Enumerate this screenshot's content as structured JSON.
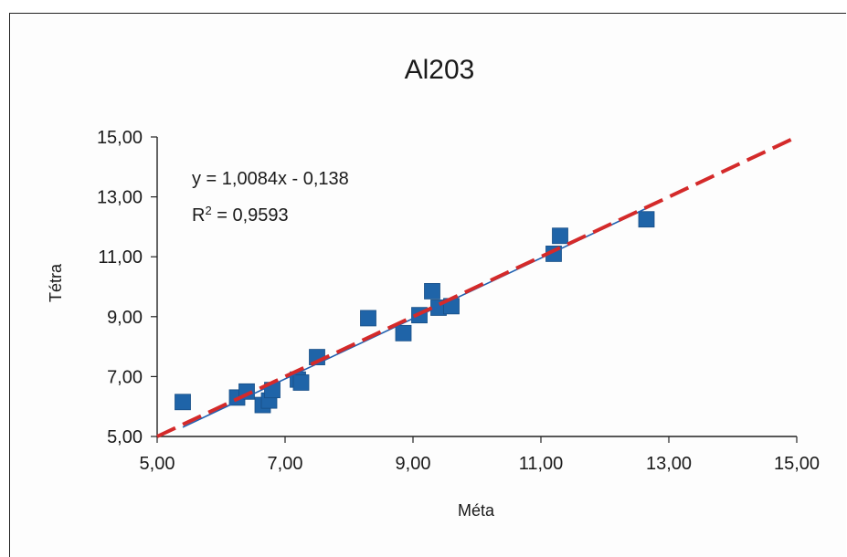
{
  "chart_data": {
    "type": "scatter",
    "title": "Al203",
    "xlabel": "Méta",
    "ylabel": "Tétra",
    "xlim": [
      5,
      15
    ],
    "ylim": [
      5,
      15
    ],
    "x_ticks": [
      "5,00",
      "7,00",
      "9,00",
      "11,00",
      "13,00",
      "15,00"
    ],
    "y_ticks": [
      "5,00",
      "7,00",
      "9,00",
      "11,00",
      "13,00",
      "15,00"
    ],
    "grid": false,
    "legend": "none",
    "annotations": {
      "equation": "y = 1,0084x - 0,138",
      "r2_prefix": "R",
      "r2_sup": "2",
      "r2_value": " = 0,9593"
    },
    "series": [
      {
        "style": "square-markers",
        "color": "#1f64a8",
        "points": [
          [
            5.4,
            6.15
          ],
          [
            6.25,
            6.3
          ],
          [
            6.4,
            6.5
          ],
          [
            6.65,
            6.05
          ],
          [
            6.75,
            6.2
          ],
          [
            6.8,
            6.55
          ],
          [
            7.2,
            6.9
          ],
          [
            7.25,
            6.8
          ],
          [
            7.5,
            7.65
          ],
          [
            8.3,
            8.95
          ],
          [
            8.85,
            8.45
          ],
          [
            9.1,
            9.05
          ],
          [
            9.3,
            9.85
          ],
          [
            9.4,
            9.3
          ],
          [
            9.6,
            9.35
          ],
          [
            11.2,
            11.1
          ],
          [
            11.3,
            11.7
          ],
          [
            12.65,
            12.25
          ]
        ]
      }
    ],
    "lines": [
      {
        "kind": "regression",
        "x": [
          5.4,
          12.65
        ],
        "slope": 1.0084,
        "intercept": -0.138,
        "color": "#2060b0"
      },
      {
        "kind": "identity-dashed",
        "x": [
          5,
          15
        ],
        "slope": 1,
        "intercept": 0,
        "color": "#d42a2a"
      }
    ]
  }
}
